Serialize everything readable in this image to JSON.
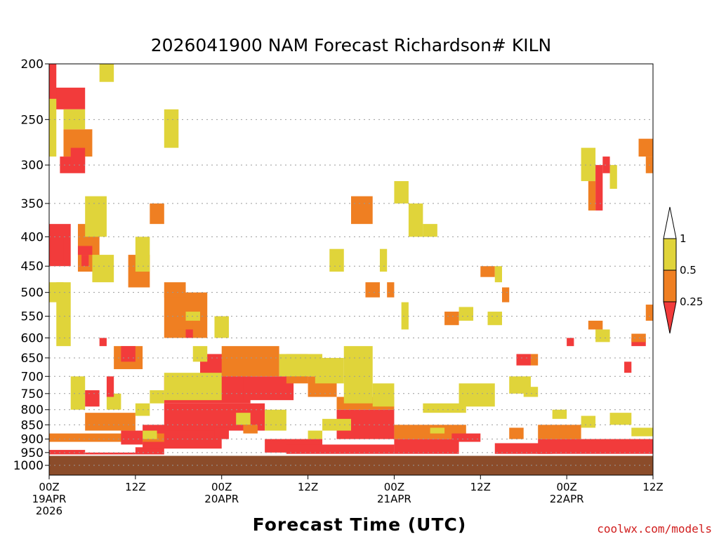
{
  "chart_data": {
    "type": "heatmap",
    "title": "2026041900 NAM Forecast Richardson# KILN",
    "xlabel": "Forecast Time (UTC)",
    "credit": "coolwx.com/models",
    "yaxis": {
      "scale": "log-pressure",
      "reversed": true,
      "range": [
        200,
        1040
      ],
      "ticks": [
        200,
        250,
        300,
        350,
        400,
        450,
        500,
        550,
        600,
        650,
        700,
        750,
        800,
        850,
        900,
        950,
        1000
      ],
      "gridlines": "dotted"
    },
    "xaxis": {
      "range_hours": [
        0,
        84
      ],
      "ticks": [
        {
          "hour": 0,
          "lines": [
            "00Z",
            "19APR",
            "2026"
          ]
        },
        {
          "hour": 12,
          "lines": [
            "12Z"
          ]
        },
        {
          "hour": 24,
          "lines": [
            "00Z",
            "20APR"
          ]
        },
        {
          "hour": 36,
          "lines": [
            "12Z"
          ]
        },
        {
          "hour": 48,
          "lines": [
            "00Z",
            "21APR"
          ]
        },
        {
          "hour": 60,
          "lines": [
            "12Z"
          ]
        },
        {
          "hour": 72,
          "lines": [
            "00Z",
            "22APR"
          ]
        },
        {
          "hour": 84,
          "lines": [
            "12Z"
          ]
        }
      ]
    },
    "legend": {
      "placement": "right",
      "labels": [
        "1",
        "0.5",
        "0.25"
      ],
      "colors": {
        "gt1": "#ffffff",
        "0.5-1": "#e0d43a",
        "0.25-0.5": "#ef7f22",
        "lt0.25": "#f23b3b"
      }
    },
    "colors": {
      "yellow": "#e0d43a",
      "orange": "#ef7f22",
      "red": "#f23b3b",
      "ground": "#8b4c2a"
    },
    "surface_pressure": 960,
    "cells": [
      {
        "t": [
          0,
          5
        ],
        "p": [
          940,
          980
        ],
        "c": "red"
      },
      {
        "t": [
          5,
          12
        ],
        "p": [
          950,
          975
        ],
        "c": "red"
      },
      {
        "t": [
          12,
          16
        ],
        "p": [
          930,
          960
        ],
        "c": "red"
      },
      {
        "t": [
          13,
          24
        ],
        "p": [
          850,
          935
        ],
        "c": "red"
      },
      {
        "t": [
          16,
          30
        ],
        "p": [
          780,
          870
        ],
        "c": "red"
      },
      {
        "t": [
          16,
          28
        ],
        "p": [
          700,
          780
        ],
        "c": "red"
      },
      {
        "t": [
          21,
          27
        ],
        "p": [
          640,
          700
        ],
        "c": "red"
      },
      {
        "t": [
          27,
          34
        ],
        "p": [
          700,
          770
        ],
        "c": "red"
      },
      {
        "t": [
          30,
          38
        ],
        "p": [
          900,
          950
        ],
        "c": "red"
      },
      {
        "t": [
          33,
          48
        ],
        "p": [
          920,
          955
        ],
        "c": "red"
      },
      {
        "t": [
          40,
          48
        ],
        "p": [
          800,
          900
        ],
        "c": "red"
      },
      {
        "t": [
          48,
          57
        ],
        "p": [
          900,
          955
        ],
        "c": "red"
      },
      {
        "t": [
          62,
          70
        ],
        "p": [
          915,
          955
        ],
        "c": "red"
      },
      {
        "t": [
          68,
          84
        ],
        "p": [
          900,
          955
        ],
        "c": "red"
      },
      {
        "t": [
          0,
          3
        ],
        "p": [
          380,
          450
        ],
        "c": "red"
      },
      {
        "t": [
          0,
          5
        ],
        "p": [
          220,
          240
        ],
        "c": "red"
      },
      {
        "t": [
          1.5,
          5
        ],
        "p": [
          290,
          310
        ],
        "c": "red"
      },
      {
        "t": [
          0,
          16
        ],
        "p": [
          880,
          910
        ],
        "c": "orange"
      },
      {
        "t": [
          5,
          12
        ],
        "p": [
          810,
          870
        ],
        "c": "orange"
      },
      {
        "t": [
          9,
          13
        ],
        "p": [
          620,
          680
        ],
        "c": "orange"
      },
      {
        "t": [
          11,
          14
        ],
        "p": [
          430,
          490
        ],
        "c": "orange"
      },
      {
        "t": [
          16,
          22
        ],
        "p": [
          500,
          600
        ],
        "c": "orange"
      },
      {
        "t": [
          24,
          32
        ],
        "p": [
          620,
          700
        ],
        "c": "orange"
      },
      {
        "t": [
          33,
          36
        ],
        "p": [
          640,
          720
        ],
        "c": "orange"
      },
      {
        "t": [
          36,
          40
        ],
        "p": [
          700,
          760
        ],
        "c": "orange"
      },
      {
        "t": [
          40,
          48
        ],
        "p": [
          760,
          800
        ],
        "c": "orange"
      },
      {
        "t": [
          48,
          58
        ],
        "p": [
          850,
          900
        ],
        "c": "orange"
      },
      {
        "t": [
          42,
          45
        ],
        "p": [
          340,
          380
        ],
        "c": "orange"
      },
      {
        "t": [
          68,
          74
        ],
        "p": [
          850,
          900
        ],
        "c": "orange"
      },
      {
        "t": [
          82,
          84
        ],
        "p": [
          270,
          290
        ],
        "c": "orange"
      },
      {
        "t": [
          2,
          6
        ],
        "p": [
          260,
          290
        ],
        "c": "orange"
      },
      {
        "t": [
          14,
          16
        ],
        "p": [
          350,
          380
        ],
        "c": "orange"
      },
      {
        "t": [
          4,
          7
        ],
        "p": [
          380,
          460
        ],
        "c": "orange"
      },
      {
        "t": [
          6,
          9
        ],
        "p": [
          430,
          480
        ],
        "c": "yellow"
      },
      {
        "t": [
          12,
          14
        ],
        "p": [
          400,
          460
        ],
        "c": "yellow"
      },
      {
        "t": [
          16,
          24
        ],
        "p": [
          690,
          770
        ],
        "c": "yellow"
      },
      {
        "t": [
          32,
          38
        ],
        "p": [
          640,
          700
        ],
        "c": "yellow"
      },
      {
        "t": [
          37,
          41
        ],
        "p": [
          650,
          720
        ],
        "c": "yellow"
      },
      {
        "t": [
          41,
          45
        ],
        "p": [
          620,
          780
        ],
        "c": "yellow"
      },
      {
        "t": [
          45,
          48
        ],
        "p": [
          720,
          790
        ],
        "c": "yellow"
      },
      {
        "t": [
          52,
          58
        ],
        "p": [
          780,
          810
        ],
        "c": "yellow"
      },
      {
        "t": [
          57,
          62
        ],
        "p": [
          720,
          790
        ],
        "c": "yellow"
      },
      {
        "t": [
          64,
          67
        ],
        "p": [
          700,
          750
        ],
        "c": "yellow"
      },
      {
        "t": [
          7,
          9
        ],
        "p": [
          200,
          215
        ],
        "c": "yellow"
      },
      {
        "t": [
          16,
          18
        ],
        "p": [
          240,
          280
        ],
        "c": "yellow"
      },
      {
        "t": [
          2,
          5
        ],
        "p": [
          240,
          260
        ],
        "c": "yellow"
      },
      {
        "t": [
          0,
          2
        ],
        "p": [
          480,
          520
        ],
        "c": "yellow"
      },
      {
        "t": [
          48,
          50
        ],
        "p": [
          320,
          350
        ],
        "c": "yellow"
      },
      {
        "t": [
          50,
          52
        ],
        "p": [
          350,
          400
        ],
        "c": "yellow"
      },
      {
        "t": [
          46,
          47
        ],
        "p": [
          420,
          460
        ],
        "c": "yellow"
      },
      {
        "t": [
          39,
          41
        ],
        "p": [
          420,
          460
        ],
        "c": "yellow"
      },
      {
        "t": [
          66,
          68
        ],
        "p": [
          730,
          760
        ],
        "c": "yellow"
      },
      {
        "t": [
          74,
          76
        ],
        "p": [
          280,
          320
        ],
        "c": "yellow"
      },
      {
        "t": [
          78,
          79
        ],
        "p": [
          300,
          330
        ],
        "c": "yellow"
      },
      {
        "t": [
          76,
          78
        ],
        "p": [
          580,
          610
        ],
        "c": "yellow"
      },
      {
        "t": [
          5,
          8
        ],
        "p": [
          340,
          400
        ],
        "c": "yellow"
      },
      {
        "t": [
          0,
          1
        ],
        "p": [
          230,
          290
        ],
        "c": "yellow"
      },
      {
        "t": [
          1,
          3
        ],
        "p": [
          480,
          620
        ],
        "c": "yellow"
      },
      {
        "t": [
          3,
          5
        ],
        "p": [
          700,
          800
        ],
        "c": "yellow"
      },
      {
        "t": [
          8,
          10
        ],
        "p": [
          750,
          800
        ],
        "c": "yellow"
      },
      {
        "t": [
          30,
          33
        ],
        "p": [
          800,
          870
        ],
        "c": "yellow"
      },
      {
        "t": [
          26,
          28
        ],
        "p": [
          810,
          850
        ],
        "c": "yellow"
      },
      {
        "t": [
          38,
          42
        ],
        "p": [
          830,
          870
        ],
        "c": "yellow"
      },
      {
        "t": [
          36,
          38
        ],
        "p": [
          870,
          900
        ],
        "c": "yellow"
      },
      {
        "t": [
          70,
          72
        ],
        "p": [
          800,
          830
        ],
        "c": "yellow"
      },
      {
        "t": [
          74,
          76
        ],
        "p": [
          820,
          860
        ],
        "c": "yellow"
      },
      {
        "t": [
          78,
          81
        ],
        "p": [
          810,
          850
        ],
        "c": "yellow"
      },
      {
        "t": [
          81,
          84
        ],
        "p": [
          860,
          890
        ],
        "c": "yellow"
      },
      {
        "t": [
          0,
          2
        ],
        "p": [
          400,
          440
        ],
        "c": "red"
      },
      {
        "t": [
          3,
          5
        ],
        "p": [
          280,
          300
        ],
        "c": "red"
      },
      {
        "t": [
          0,
          1
        ],
        "p": [
          200,
          230
        ],
        "c": "red"
      },
      {
        "t": [
          4,
          6
        ],
        "p": [
          415,
          430
        ],
        "c": "red"
      },
      {
        "t": [
          4.5,
          5.5
        ],
        "p": [
          430,
          450
        ],
        "c": "red"
      },
      {
        "t": [
          7,
          8
        ],
        "p": [
          600,
          620
        ],
        "c": "red"
      },
      {
        "t": [
          10,
          12
        ],
        "p": [
          620,
          660
        ],
        "c": "red"
      },
      {
        "t": [
          5,
          7
        ],
        "p": [
          740,
          790
        ],
        "c": "red"
      },
      {
        "t": [
          8,
          9
        ],
        "p": [
          700,
          760
        ],
        "c": "red"
      },
      {
        "t": [
          16,
          19
        ],
        "p": [
          480,
          510
        ],
        "c": "orange"
      },
      {
        "t": [
          18,
          20
        ],
        "p": [
          540,
          580
        ],
        "c": "orange"
      },
      {
        "t": [
          19,
          20
        ],
        "p": [
          580,
          600
        ],
        "c": "red"
      },
      {
        "t": [
          19,
          21
        ],
        "p": [
          540,
          560
        ],
        "c": "yellow"
      },
      {
        "t": [
          23,
          25
        ],
        "p": [
          550,
          600
        ],
        "c": "yellow"
      },
      {
        "t": [
          14,
          16
        ],
        "p": [
          740,
          780
        ],
        "c": "yellow"
      },
      {
        "t": [
          12,
          14
        ],
        "p": [
          780,
          820
        ],
        "c": "yellow"
      },
      {
        "t": [
          20,
          22
        ],
        "p": [
          620,
          660
        ],
        "c": "yellow"
      },
      {
        "t": [
          13,
          15
        ],
        "p": [
          870,
          900
        ],
        "c": "yellow"
      },
      {
        "t": [
          10,
          13
        ],
        "p": [
          870,
          920
        ],
        "c": "red"
      },
      {
        "t": [
          44,
          46
        ],
        "p": [
          480,
          510
        ],
        "c": "orange"
      },
      {
        "t": [
          47,
          48
        ],
        "p": [
          480,
          510
        ],
        "c": "orange"
      },
      {
        "t": [
          49,
          50
        ],
        "p": [
          520,
          580
        ],
        "c": "yellow"
      },
      {
        "t": [
          52,
          54
        ],
        "p": [
          380,
          400
        ],
        "c": "yellow"
      },
      {
        "t": [
          53,
          55
        ],
        "p": [
          860,
          880
        ],
        "c": "yellow"
      },
      {
        "t": [
          55,
          57
        ],
        "p": [
          540,
          570
        ],
        "c": "orange"
      },
      {
        "t": [
          60,
          62
        ],
        "p": [
          450,
          470
        ],
        "c": "orange"
      },
      {
        "t": [
          62,
          63
        ],
        "p": [
          450,
          480
        ],
        "c": "yellow"
      },
      {
        "t": [
          63,
          64
        ],
        "p": [
          490,
          520
        ],
        "c": "orange"
      },
      {
        "t": [
          57,
          59
        ],
        "p": [
          530,
          560
        ],
        "c": "yellow"
      },
      {
        "t": [
          61,
          63
        ],
        "p": [
          540,
          570
        ],
        "c": "yellow"
      },
      {
        "t": [
          65,
          67
        ],
        "p": [
          640,
          670
        ],
        "c": "red"
      },
      {
        "t": [
          67,
          68
        ],
        "p": [
          640,
          670
        ],
        "c": "orange"
      },
      {
        "t": [
          72,
          73
        ],
        "p": [
          600,
          620
        ],
        "c": "red"
      },
      {
        "t": [
          76,
          77
        ],
        "p": [
          300,
          360
        ],
        "c": "red"
      },
      {
        "t": [
          75,
          76
        ],
        "p": [
          320,
          360
        ],
        "c": "orange"
      },
      {
        "t": [
          77,
          78
        ],
        "p": [
          290,
          310
        ],
        "c": "red"
      },
      {
        "t": [
          75,
          77
        ],
        "p": [
          560,
          580
        ],
        "c": "orange"
      },
      {
        "t": [
          80,
          81
        ],
        "p": [
          660,
          690
        ],
        "c": "red"
      },
      {
        "t": [
          81,
          83
        ],
        "p": [
          600,
          620
        ],
        "c": "red"
      },
      {
        "t": [
          81,
          83
        ],
        "p": [
          590,
          610
        ],
        "c": "orange"
      },
      {
        "t": [
          83,
          84
        ],
        "p": [
          290,
          310
        ],
        "c": "orange"
      },
      {
        "t": [
          83,
          84
        ],
        "p": [
          525,
          560
        ],
        "c": "orange"
      },
      {
        "t": [
          71,
          73
        ],
        "p": [
          860,
          900
        ],
        "c": "orange"
      },
      {
        "t": [
          64,
          66
        ],
        "p": [
          860,
          900
        ],
        "c": "orange"
      },
      {
        "t": [
          56,
          60
        ],
        "p": [
          880,
          910
        ],
        "c": "red"
      },
      {
        "t": [
          23,
          25
        ],
        "p": [
          860,
          900
        ],
        "c": "red"
      },
      {
        "t": [
          27,
          29
        ],
        "p": [
          850,
          880
        ],
        "c": "orange"
      }
    ]
  }
}
